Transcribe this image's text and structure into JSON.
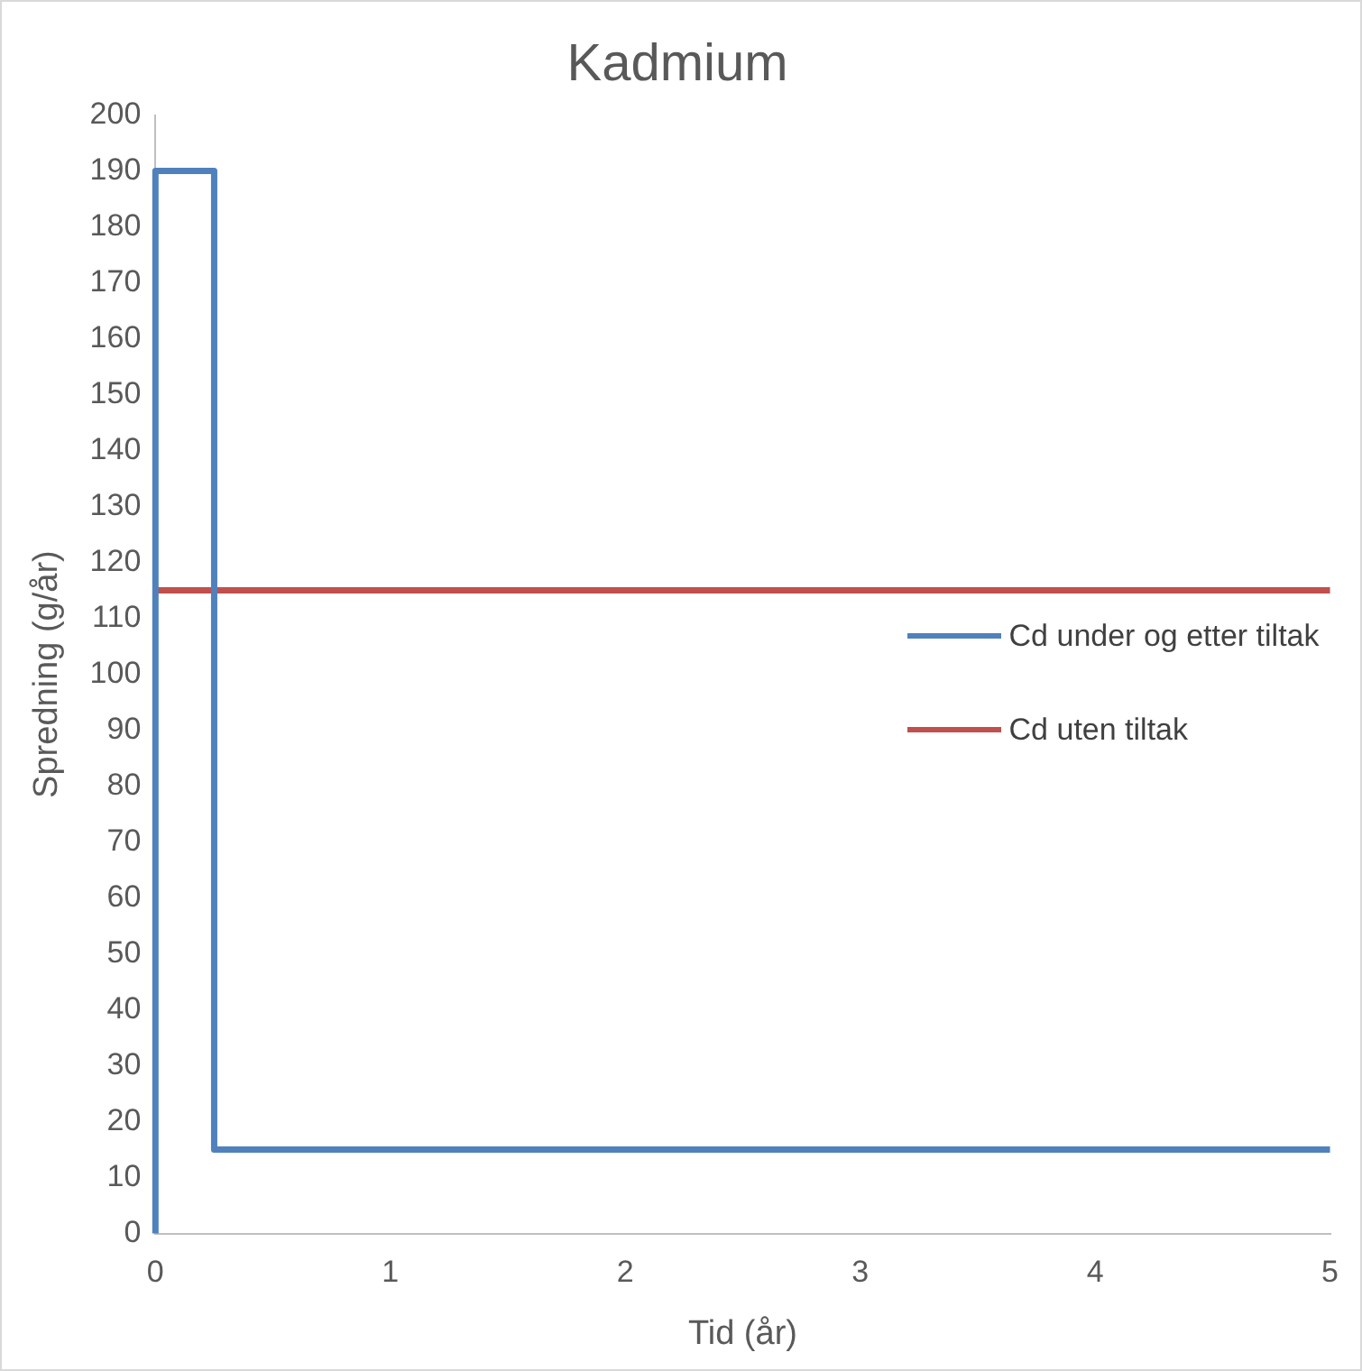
{
  "chart_data": {
    "type": "line",
    "title": "Kadmium",
    "xlabel": "Tid (år)",
    "ylabel": "Spredning (g/år)",
    "xlim": [
      0,
      5
    ],
    "xticks": [
      0,
      1,
      2,
      3,
      4,
      5
    ],
    "ylim": [
      0,
      200
    ],
    "yticks": [
      0,
      10,
      20,
      30,
      40,
      50,
      60,
      70,
      80,
      90,
      100,
      110,
      120,
      130,
      140,
      150,
      160,
      170,
      180,
      190,
      200
    ],
    "series": [
      {
        "name": "Cd under og etter tiltak",
        "color": "#4f81bd",
        "x": [
          0,
          0,
          0.25,
          0.25,
          5
        ],
        "values": [
          0,
          190,
          190,
          15,
          15
        ]
      },
      {
        "name": "Cd uten tiltak",
        "color": "#c0504d",
        "x": [
          0,
          5
        ],
        "values": [
          115,
          115
        ]
      }
    ],
    "grid": false,
    "legend": "right",
    "marker": "none",
    "line_style": "solid"
  }
}
